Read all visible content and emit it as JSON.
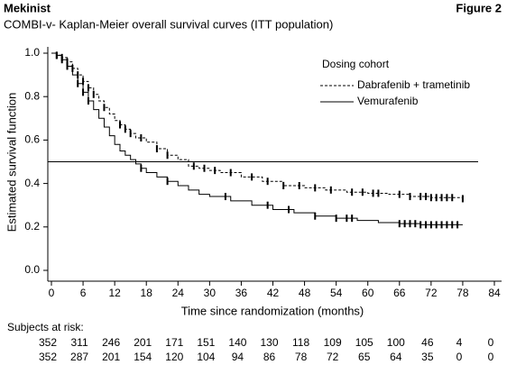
{
  "chart_data": {
    "type": "km",
    "brand": "Mekinist",
    "figure_label": "Figure 2",
    "title": "COMBI-v- Kaplan-Meier overall survival curves (ITT population)",
    "x_label": "Time since randomization (months)",
    "y_label": "Estimated survival function",
    "legend_title": "Dosing cohort",
    "xlim": [
      0,
      84
    ],
    "xticks": [
      0,
      6,
      12,
      18,
      24,
      30,
      36,
      42,
      48,
      54,
      60,
      66,
      72,
      78,
      84
    ],
    "ylim": [
      0,
      1
    ],
    "yticks": [
      {
        "value": 0,
        "label": "0.0"
      },
      0.2,
      0.4,
      0.6,
      0.8,
      {
        "value": 1,
        "label": "1.0"
      }
    ],
    "reference_line": 0.5,
    "series": [
      {
        "name": "Dabrafenib + trametinib",
        "color": "#000000",
        "dash": true,
        "x": [
          0,
          1,
          2,
          3,
          4,
          5,
          6,
          7,
          8,
          9,
          10,
          11,
          12,
          13,
          14,
          15,
          16,
          18,
          20,
          22,
          24,
          26,
          28,
          30,
          32,
          36,
          40,
          44,
          48,
          52,
          56,
          60,
          64,
          68,
          72,
          78
        ],
        "values": [
          1.0,
          0.99,
          0.98,
          0.96,
          0.93,
          0.9,
          0.87,
          0.84,
          0.81,
          0.78,
          0.75,
          0.72,
          0.69,
          0.67,
          0.65,
          0.63,
          0.61,
          0.59,
          0.56,
          0.53,
          0.51,
          0.48,
          0.47,
          0.46,
          0.45,
          0.43,
          0.41,
          0.39,
          0.38,
          0.37,
          0.36,
          0.355,
          0.35,
          0.34,
          0.335,
          0.33
        ],
        "censored": [
          1,
          2,
          3,
          4,
          5,
          6,
          7,
          8,
          10,
          13,
          14,
          15,
          17,
          20,
          22,
          27,
          29,
          31,
          34,
          38,
          41,
          44,
          47,
          50,
          53,
          57,
          59,
          61,
          62,
          66,
          68,
          70,
          71,
          72,
          73,
          74,
          75,
          76,
          78
        ]
      },
      {
        "name": "Vemurafenib",
        "color": "#000000",
        "dash": false,
        "x": [
          0,
          1,
          2,
          3,
          4,
          5,
          6,
          7,
          8,
          9,
          10,
          11,
          12,
          13,
          14,
          15,
          16,
          17,
          18,
          20,
          22,
          24,
          26,
          28,
          30,
          34,
          38,
          42,
          46,
          50,
          54,
          58,
          62,
          66,
          70,
          78
        ],
        "values": [
          1.0,
          0.99,
          0.97,
          0.94,
          0.9,
          0.86,
          0.82,
          0.78,
          0.74,
          0.7,
          0.66,
          0.62,
          0.58,
          0.55,
          0.53,
          0.51,
          0.49,
          0.47,
          0.45,
          0.43,
          0.41,
          0.39,
          0.37,
          0.35,
          0.34,
          0.32,
          0.3,
          0.28,
          0.265,
          0.25,
          0.24,
          0.23,
          0.22,
          0.215,
          0.21,
          0.21
        ],
        "censored": [
          1,
          2,
          3,
          5,
          6,
          7,
          17,
          22,
          33,
          41,
          45,
          50,
          54,
          56,
          57,
          66,
          67,
          68,
          69,
          70,
          71,
          72,
          73,
          74,
          75,
          76,
          77
        ]
      }
    ],
    "risk_table": {
      "label": "Subjects at risk:",
      "rows": [
        [
          352,
          311,
          246,
          201,
          171,
          151,
          140,
          130,
          118,
          109,
          105,
          100,
          46,
          4,
          0
        ],
        [
          352,
          287,
          201,
          154,
          120,
          104,
          94,
          86,
          78,
          72,
          65,
          64,
          35,
          0,
          0
        ]
      ]
    }
  }
}
